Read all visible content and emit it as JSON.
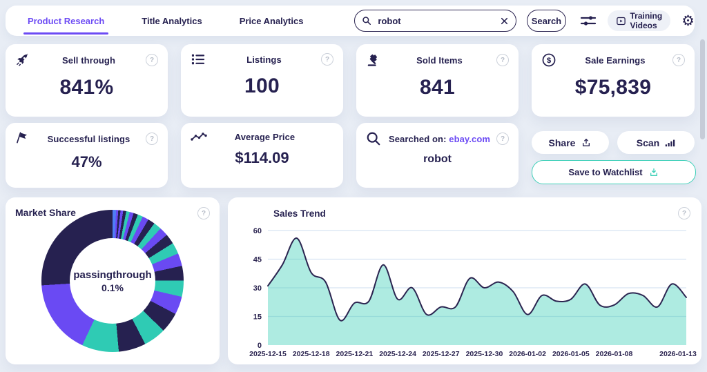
{
  "header": {
    "tabs": [
      {
        "label": "Product Research",
        "active": true
      },
      {
        "label": "Title Analytics",
        "active": false
      },
      {
        "label": "Price Analytics",
        "active": false
      }
    ],
    "search": {
      "value": "robot",
      "button_label": "Search"
    },
    "training_videos_label": "Training Videos"
  },
  "icons": {
    "help_glyph": "?",
    "gear_glyph": "⚙"
  },
  "stats": [
    {
      "icon": "rocket-icon",
      "title": "Sell through",
      "value": "841%"
    },
    {
      "icon": "list-icon",
      "title": "Listings",
      "value": "100"
    },
    {
      "icon": "gavel-icon",
      "title": "Sold Items",
      "value": "841"
    },
    {
      "icon": "dollar-icon",
      "title": "Sale Earnings",
      "value": "$75,839"
    },
    {
      "icon": "flag-icon",
      "title": "Successful listings",
      "value": "47%"
    },
    {
      "icon": "trend-icon",
      "title": "Average Price",
      "value": "$114.09"
    },
    {
      "icon": "search-icon",
      "title_prefix": "Searched on:",
      "title_link": "ebay.com",
      "value": "robot"
    }
  ],
  "actions": {
    "share_label": "Share",
    "scan_label": "Scan",
    "save_label": "Save to Watchlist"
  },
  "colors": {
    "accent_purple": "#6c4bf4",
    "navy": "#262150",
    "teal": "#2fcbb4",
    "save_border": "#3ed0b8",
    "background": "#e8edf5"
  },
  "chart_data": [
    {
      "type": "pie",
      "title": "Market Share",
      "center_label": {
        "line1": "passingthrough",
        "line2": "0.1%"
      },
      "palette": {
        "dark": "#262150",
        "purple": "#6a4af3",
        "teal": "#2fcbb4",
        "blue": "#4f7df6"
      },
      "slices": [
        {
          "color": "blue",
          "value": 0.4
        },
        {
          "color": "blue",
          "value": 0.4
        },
        {
          "color": "purple",
          "value": 0.5
        },
        {
          "color": "dark",
          "value": 0.5
        },
        {
          "color": "purple",
          "value": 0.6
        },
        {
          "color": "dark",
          "value": 0.7
        },
        {
          "color": "teal",
          "value": 0.8
        },
        {
          "color": "purple",
          "value": 0.9
        },
        {
          "color": "dark",
          "value": 1.0
        },
        {
          "color": "teal",
          "value": 1.2
        },
        {
          "color": "purple",
          "value": 1.4
        },
        {
          "color": "dark",
          "value": 1.6
        },
        {
          "color": "teal",
          "value": 1.8
        },
        {
          "color": "purple",
          "value": 2.0
        },
        {
          "color": "dark",
          "value": 2.3
        },
        {
          "color": "teal",
          "value": 2.6
        },
        {
          "color": "purple",
          "value": 2.9
        },
        {
          "color": "dark",
          "value": 3.3
        },
        {
          "color": "teal",
          "value": 3.7
        },
        {
          "color": "purple",
          "value": 4.1
        },
        {
          "color": "dark",
          "value": 4.6
        },
        {
          "color": "teal",
          "value": 5.1
        },
        {
          "color": "dark",
          "value": 6.2
        },
        {
          "color": "teal",
          "value": 8.4
        },
        {
          "color": "purple",
          "value": 17.0
        },
        {
          "color": "dark",
          "value": 26.0
        }
      ]
    },
    {
      "type": "area",
      "title": "Sales Trend",
      "x": [
        "2025-12-15",
        "2025-12-16",
        "2025-12-17",
        "2025-12-18",
        "2025-12-19",
        "2025-12-20",
        "2025-12-21",
        "2025-12-22",
        "2025-12-23",
        "2025-12-24",
        "2025-12-25",
        "2025-12-26",
        "2025-12-27",
        "2025-12-28",
        "2025-12-29",
        "2025-12-30",
        "2025-12-31",
        "2026-01-01",
        "2026-01-02",
        "2026-01-03",
        "2026-01-04",
        "2026-01-05",
        "2026-01-06",
        "2026-01-07",
        "2026-01-08",
        "2026-01-09",
        "2026-01-10",
        "2026-01-11",
        "2026-01-12",
        "2026-01-13"
      ],
      "values": [
        31,
        42,
        56,
        38,
        33,
        13,
        22,
        23,
        42,
        24,
        30,
        16,
        20,
        20,
        35,
        30,
        33,
        28,
        16,
        26,
        23,
        24,
        32,
        21,
        21,
        27,
        26,
        20,
        32,
        25
      ],
      "ylim": [
        0,
        60
      ],
      "yticks": [
        0,
        15,
        30,
        45,
        60
      ],
      "xtick_labels": [
        "2025-12-15",
        "2025-12-18",
        "2025-12-21",
        "2025-12-24",
        "2025-12-27",
        "2025-12-30",
        "2026-01-02",
        "2026-01-05",
        "2026-01-08",
        "2026-01-13"
      ],
      "xtick_positions": [
        0,
        3,
        6,
        9,
        12,
        15,
        18,
        21,
        24,
        29
      ],
      "line_color": "#2b2450",
      "fill_color": "rgba(63,208,184,0.42)",
      "grid_color": "#d7e3f2",
      "grid": true
    }
  ]
}
